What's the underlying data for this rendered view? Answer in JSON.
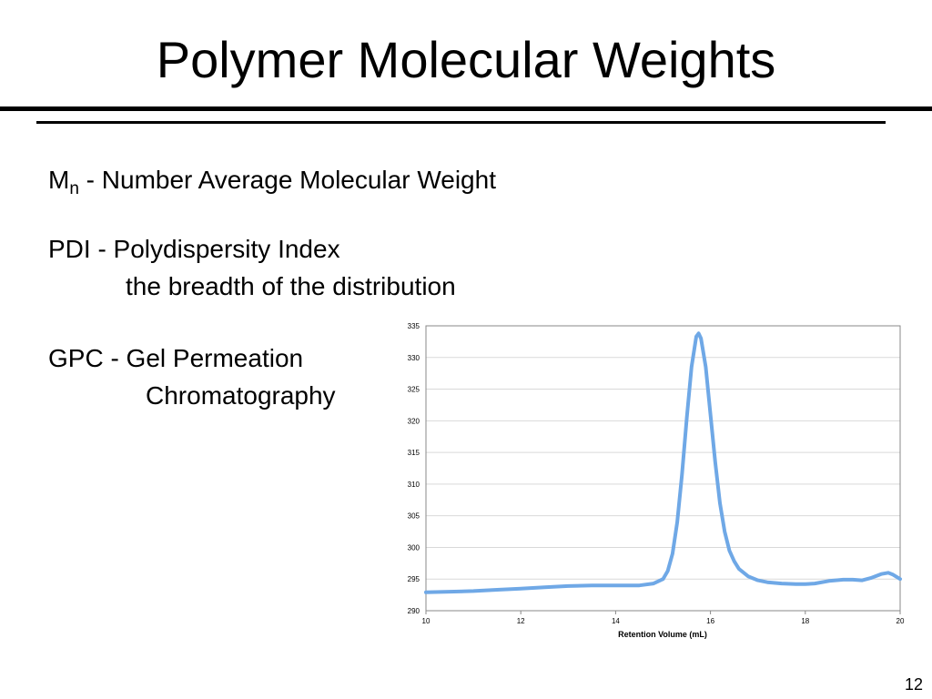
{
  "slide": {
    "title": "Polymer Molecular Weights",
    "mn_symbol": "M",
    "mn_subscript": "n",
    "mn_text": " - Number Average Molecular Weight",
    "pdi_text": "PDI - Polydispersity Index",
    "pdi_subtext": "the breadth of the distribution",
    "gpc_text": "GPC - Gel Permeation",
    "gpc_subtext": "Chromatography",
    "page_number": "12"
  },
  "chart_data": {
    "type": "line",
    "title": "",
    "xlabel": "Retention Volume (mL)",
    "ylabel": "",
    "xlim": [
      10,
      20
    ],
    "ylim": [
      290,
      335
    ],
    "xticks": [
      10,
      12,
      14,
      16,
      18,
      20
    ],
    "yticks": [
      290,
      295,
      300,
      305,
      310,
      315,
      320,
      325,
      330,
      335
    ],
    "grid": "horizontal",
    "legend": "none",
    "line_color": "#6fa8e6",
    "series": [
      {
        "x": [
          10.0,
          10.5,
          11.0,
          11.5,
          12.0,
          12.5,
          13.0,
          13.5,
          14.0,
          14.5,
          14.8,
          15.0,
          15.1,
          15.2,
          15.3,
          15.4,
          15.5,
          15.6,
          15.7,
          15.75,
          15.8,
          15.9,
          16.0,
          16.1,
          16.2,
          16.3,
          16.4,
          16.5,
          16.6,
          16.8,
          17.0,
          17.2,
          17.5,
          17.8,
          18.0,
          18.2,
          18.5,
          18.8,
          19.0,
          19.2,
          19.4,
          19.6,
          19.75,
          19.85,
          20.0
        ],
        "y": [
          292.9,
          293.0,
          293.1,
          293.3,
          293.5,
          293.7,
          293.9,
          294.0,
          294.0,
          294.0,
          294.3,
          295.0,
          296.3,
          299.0,
          304.0,
          311.5,
          320.5,
          328.5,
          333.3,
          333.8,
          333.0,
          328.5,
          321.0,
          313.5,
          307.0,
          302.5,
          299.5,
          297.8,
          296.6,
          295.4,
          294.8,
          294.5,
          294.3,
          294.2,
          294.2,
          294.3,
          294.7,
          294.9,
          294.9,
          294.8,
          295.2,
          295.8,
          296.0,
          295.7,
          295.0
        ]
      }
    ]
  }
}
